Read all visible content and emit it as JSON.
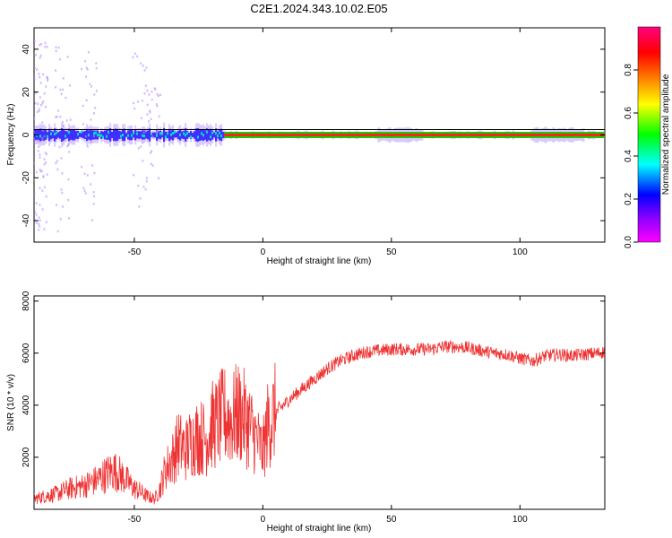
{
  "title": "C2E1.2024.343.10.02.E05",
  "chart_data": [
    {
      "type": "heatmap",
      "xlabel": "Height of straight line (km)",
      "ylabel": "Frequency (Hz)",
      "xlim": [
        -89,
        133
      ],
      "ylim": [
        -50,
        50
      ],
      "x_ticks": [
        "-50",
        "0",
        "50",
        "100"
      ],
      "y_ticks": [
        "-40",
        "-20",
        "0",
        "20",
        "40"
      ],
      "grid": false,
      "ridge_frequency": 0,
      "colorbar": {
        "label": "Normalized spectral amplitude",
        "range": [
          0,
          1
        ],
        "ticks": [
          "0.0",
          "0.2",
          "0.4",
          "0.6",
          "0.8"
        ],
        "colors": [
          "#ff00ff",
          "#8000ff",
          "#0000ff",
          "#00ffff",
          "#00ff00",
          "#ffff00",
          "#ff8000",
          "#ff0000",
          "#ff0080"
        ]
      }
    },
    {
      "type": "line",
      "xlabel": "Height of straight line (km)",
      "ylabel": "SNR (10 * v/v)",
      "xlim": [
        -89,
        133
      ],
      "ylim": [
        0,
        8200
      ],
      "x_ticks": [
        "-50",
        "0",
        "50",
        "100"
      ],
      "y_ticks": [
        "2000",
        "4000",
        "6000",
        "8000"
      ],
      "color": "#ee3333",
      "grid": false,
      "x": [
        -89,
        -85,
        -80,
        -75,
        -70,
        -65,
        -60,
        -58,
        -55,
        -52,
        -50,
        -48,
        -45,
        -42,
        -40,
        -38,
        -35,
        -33,
        -30,
        -28,
        -25,
        -22,
        -20,
        -18,
        -15,
        -12,
        -10,
        -8,
        -5,
        -3,
        0,
        2,
        5,
        10,
        15,
        20,
        25,
        30,
        35,
        40,
        45,
        50,
        55,
        60,
        65,
        70,
        75,
        80,
        85,
        90,
        95,
        100,
        105,
        110,
        115,
        120,
        125,
        130,
        133
      ],
      "y": [
        400,
        500,
        600,
        800,
        900,
        1100,
        1400,
        1500,
        1300,
        1000,
        800,
        700,
        500,
        400,
        800,
        1500,
        2000,
        2500,
        2300,
        2600,
        2800,
        2700,
        3200,
        3300,
        3600,
        3400,
        3700,
        3600,
        3200,
        2800,
        2200,
        3300,
        3700,
        4200,
        4600,
        5000,
        5400,
        5700,
        5900,
        6050,
        6100,
        6150,
        6150,
        6150,
        6150,
        6250,
        6250,
        6200,
        6100,
        6000,
        5950,
        5800,
        5700,
        5900,
        5950,
        5900,
        5950,
        6000,
        6050
      ]
    }
  ]
}
